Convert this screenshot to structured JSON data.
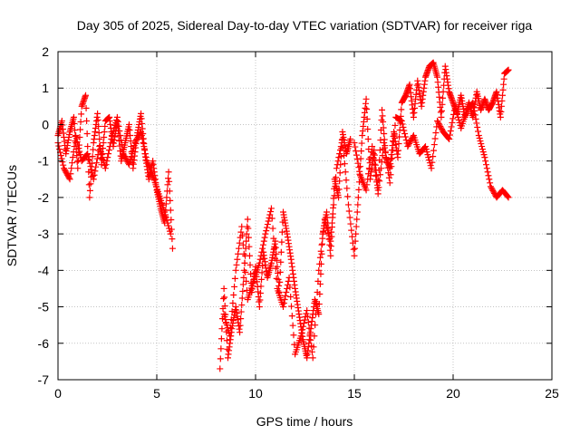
{
  "chart_data": {
    "type": "scatter",
    "title": "Day 305 of 2025, Sidereal Day-to-day VTEC variation (SDTVAR) for receiver riga",
    "xlabel": "GPS time / hours",
    "ylabel": "SDTVAR / TECUs",
    "xlim": [
      0,
      25
    ],
    "ylim": [
      -7,
      2
    ],
    "xticks": [
      0,
      5,
      10,
      15,
      20,
      25
    ],
    "yticks": [
      -7,
      -6,
      -5,
      -4,
      -3,
      -2,
      -1,
      0,
      1,
      2
    ],
    "grid": true,
    "marker": "+",
    "color": "#ff0000",
    "series": [
      {
        "name": "SDTVAR",
        "x": [
          0.0,
          0.2,
          0.4,
          0.6,
          0.8,
          1.0,
          1.2,
          1.4,
          1.6,
          1.8,
          2.0,
          2.2,
          2.4,
          2.6,
          2.8,
          3.0,
          3.2,
          3.4,
          3.6,
          3.8,
          4.0,
          4.2,
          4.4,
          4.6,
          4.8,
          5.0,
          5.2,
          5.4,
          5.6,
          5.8,
          0.0,
          0.3,
          0.6,
          0.9,
          1.2,
          1.5,
          1.8,
          2.1,
          2.4,
          2.7,
          3.0,
          3.3,
          3.6,
          3.9,
          4.2,
          4.5,
          4.8,
          5.1,
          5.4,
          5.7,
          8.2,
          8.4,
          8.6,
          8.8,
          9.0,
          9.2,
          9.4,
          9.6,
          9.8,
          10.0,
          10.2,
          10.4,
          10.6,
          10.8,
          11.0,
          11.2,
          11.4,
          11.6,
          11.8,
          12.0,
          12.2,
          12.4,
          12.6,
          12.8,
          13.0,
          13.2,
          13.4,
          13.6,
          13.8,
          14.0,
          14.2,
          14.4,
          14.6,
          14.8,
          8.4,
          8.7,
          9.0,
          9.3,
          9.6,
          9.9,
          10.2,
          10.5,
          10.8,
          11.1,
          11.4,
          11.7,
          12.0,
          12.3,
          12.6,
          12.9,
          13.2,
          13.5,
          13.8,
          14.1,
          14.4,
          14.7,
          15.0,
          15.2,
          15.4,
          15.6,
          15.8,
          16.0,
          16.2,
          16.4,
          16.6,
          16.8,
          17.0,
          17.2,
          17.4,
          17.6,
          17.8,
          18.0,
          18.2,
          18.4,
          18.6,
          18.8,
          19.0,
          19.2,
          19.4,
          19.6,
          19.8,
          20.0,
          20.2,
          20.4,
          20.6,
          20.8,
          21.0,
          21.2,
          21.4,
          21.6,
          21.8,
          22.0,
          22.2,
          22.4,
          22.6,
          22.8,
          15.0,
          15.3,
          15.6,
          15.9,
          16.2,
          16.5,
          16.8,
          17.1,
          17.4,
          17.7,
          18.0,
          18.3,
          18.6,
          18.9,
          19.2,
          19.5,
          19.8,
          20.1,
          20.4,
          20.7,
          21.0,
          21.3,
          21.6,
          21.9,
          22.2,
          22.5,
          22.8
        ],
        "y": [
          -0.3,
          0.1,
          -0.8,
          -0.2,
          0.2,
          -1.2,
          0.5,
          0.8,
          -2.0,
          -0.5,
          0.3,
          -1.1,
          0.1,
          0.2,
          -0.6,
          0.1,
          -1.0,
          -0.5,
          0.0,
          -1.2,
          -0.3,
          0.3,
          -0.8,
          -1.5,
          -1.0,
          -1.8,
          -2.3,
          -2.7,
          -1.3,
          -3.4,
          -0.5,
          -1.2,
          -1.5,
          -0.3,
          -1.0,
          -0.8,
          -1.5,
          -0.6,
          -1.2,
          -0.4,
          0.2,
          -0.8,
          -1.1,
          -0.5,
          -0.2,
          -1.0,
          -1.4,
          -1.9,
          -2.4,
          -3.0,
          -6.7,
          -4.5,
          -6.4,
          -5.6,
          -5.0,
          -5.7,
          -4.2,
          -2.6,
          -4.6,
          -3.9,
          -5.0,
          -3.5,
          -4.2,
          -3.8,
          -3.2,
          -4.6,
          -2.4,
          -3.0,
          -3.7,
          -4.5,
          -5.2,
          -5.9,
          -6.4,
          -5.6,
          -4.8,
          -5.2,
          -3.0,
          -2.4,
          -3.6,
          -1.5,
          -2.0,
          -0.2,
          -0.8,
          -0.4,
          -5.2,
          -5.8,
          -4.0,
          -2.8,
          -4.8,
          -4.3,
          -3.8,
          -3.0,
          -2.3,
          -4.5,
          -5.0,
          -4.2,
          -6.3,
          -5.8,
          -5.1,
          -6.4,
          -4.0,
          -2.6,
          -3.2,
          -1.2,
          -0.4,
          -2.2,
          -3.6,
          -2.0,
          -0.3,
          0.7,
          -1.5,
          -0.7,
          -1.8,
          0.4,
          -0.9,
          -1.2,
          -0.2,
          -0.9,
          0.6,
          0.8,
          1.1,
          0.2,
          1.2,
          0.5,
          1.3,
          1.6,
          1.7,
          1.3,
          0.2,
          1.6,
          0.9,
          0.6,
          0.3,
          0.8,
          0.2,
          0.6,
          0.2,
          0.9,
          0.4,
          0.7,
          0.4,
          0.6,
          0.9,
          0.2,
          1.4,
          1.5,
          -0.5,
          -1.4,
          -1.8,
          -0.6,
          -1.9,
          -0.5,
          -1.6,
          0.2,
          0.1,
          -0.6,
          -0.3,
          -0.8,
          -0.6,
          -1.2,
          0.1,
          -0.2,
          -0.4,
          0.5,
          -0.1,
          0.4,
          0.6,
          -0.3,
          -0.9,
          -1.7,
          -2.0,
          -1.8,
          -2.0
        ]
      }
    ]
  }
}
